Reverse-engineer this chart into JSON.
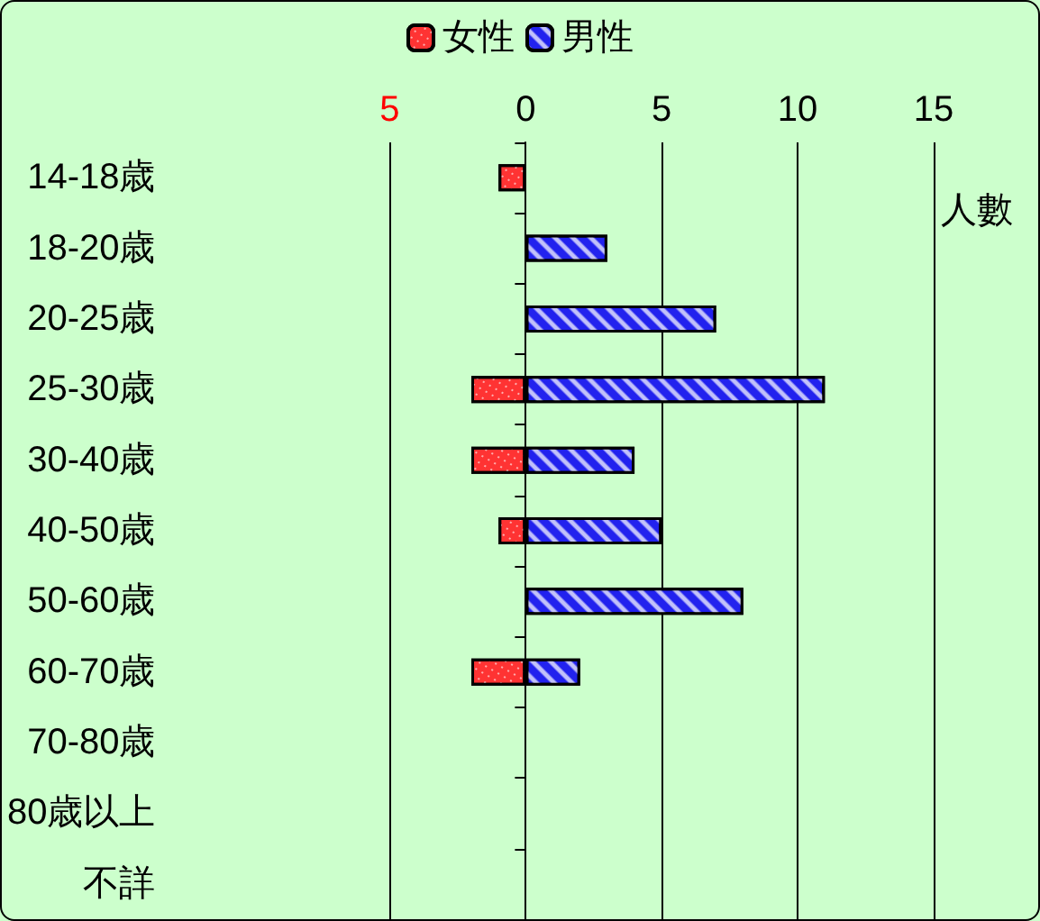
{
  "chart_data": {
    "type": "bar",
    "orientation": "horizontal",
    "stacked": true,
    "xlabel": "人數",
    "categories": [
      "14-18歳",
      "18-20歳",
      "20-25歳",
      "25-30歳",
      "30-40歳",
      "40-50歳",
      "50-60歳",
      "60-70歳",
      "70-80歳",
      "80歳以上",
      "不詳"
    ],
    "series": [
      {
        "name": "女性",
        "color": "#ff3333",
        "values": [
          -1,
          null,
          null,
          -2,
          -2,
          -1,
          null,
          -2,
          null,
          null,
          null
        ]
      },
      {
        "name": "男性",
        "color": "#2222ee",
        "values": [
          null,
          3,
          7,
          11,
          4,
          5,
          8,
          2,
          null,
          null,
          null
        ]
      }
    ],
    "xlim": [
      -5,
      15
    ],
    "xticks": [
      {
        "value": -5,
        "label": "5"
      },
      0,
      5,
      10,
      15
    ],
    "grid": "x",
    "legend": "top"
  }
}
